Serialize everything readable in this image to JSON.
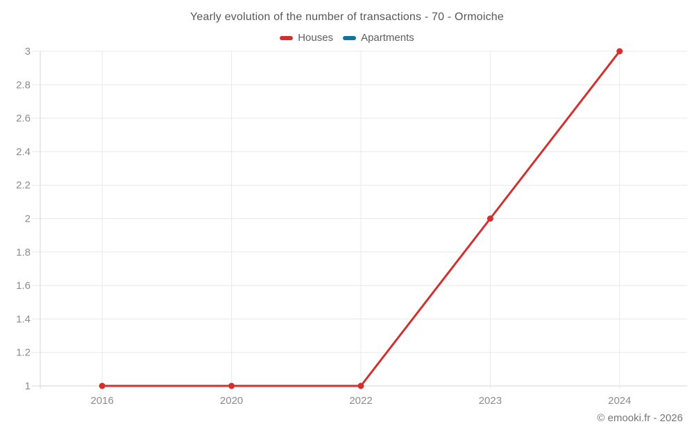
{
  "header": {
    "title": "Yearly evolution of the number of transactions - 70 - Ormoiche"
  },
  "legend": {
    "items": [
      {
        "label": "Houses",
        "color": "#d32f2f"
      },
      {
        "label": "Apartments",
        "color": "#0f74a3"
      }
    ]
  },
  "footer": {
    "copyright": "© emooki.fr - 2026"
  },
  "colors": {
    "houses_line": "#d32f2f",
    "apartments_line": "#0f74a3",
    "gridline": "#e8e8e8",
    "axis_line": "#d6d6d6",
    "tick_label": "#8c8c8c",
    "title_text": "#575757"
  },
  "chart_data": {
    "type": "line",
    "title": "Yearly evolution of the number of transactions - 70 - Ormoiche",
    "categories": [
      "2016",
      "2020",
      "2022",
      "2023",
      "2024"
    ],
    "series": [
      {
        "name": "Houses",
        "color": "#d32f2f",
        "values": [
          1,
          1,
          1,
          2,
          3
        ]
      },
      {
        "name": "Apartments",
        "color": "#0f74a3",
        "values": []
      }
    ],
    "xlabel": "",
    "ylabel": "",
    "ylim": [
      1,
      3
    ],
    "y_ticks": [
      1,
      1.2,
      1.4,
      1.6,
      1.8,
      2,
      2.2,
      2.4,
      2.6,
      2.8,
      3
    ],
    "grid": true,
    "legend_position": "top",
    "marker": "circle"
  }
}
